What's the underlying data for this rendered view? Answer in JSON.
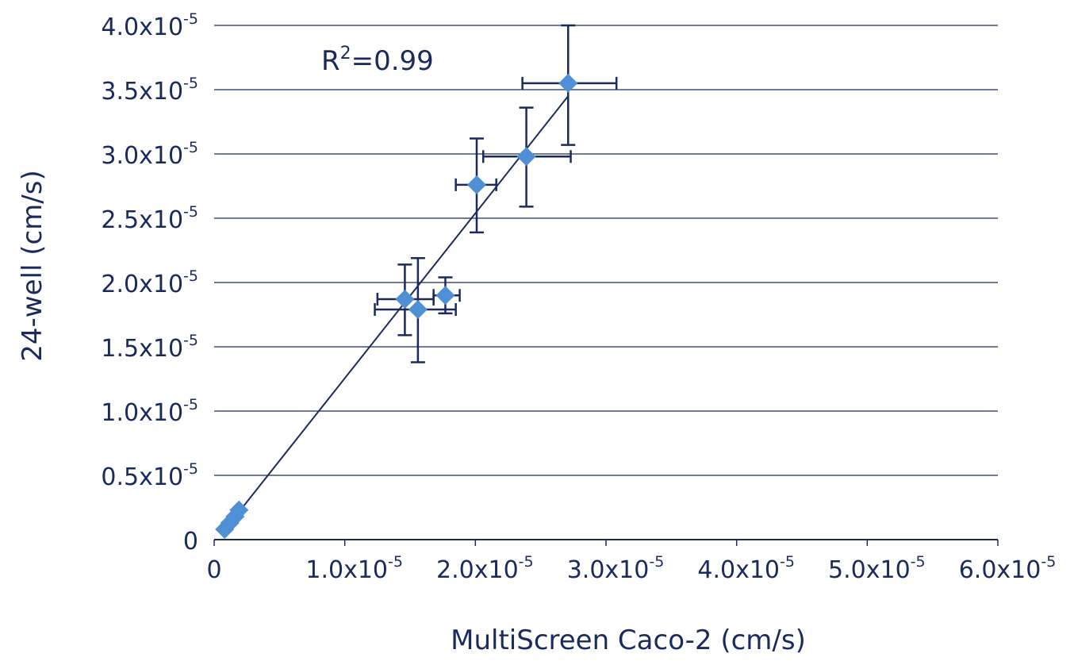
{
  "chart_data": {
    "type": "scatter",
    "title": "",
    "xlabel": "MultiScreen Caco-2 (cm/s)",
    "ylabel": "24-well (cm/s)",
    "xlim": [
      0,
      6.0
    ],
    "ylim": [
      0,
      4.0
    ],
    "units_multiplier": "x10^-5",
    "exponent": "-5",
    "x_ticks": [
      {
        "v": 0,
        "label": "0",
        "exp": false
      },
      {
        "v": 1.0,
        "label": "1.0x10",
        "exp": true
      },
      {
        "v": 2.0,
        "label": "2.0x10",
        "exp": true
      },
      {
        "v": 3.0,
        "label": "3.0x10",
        "exp": true
      },
      {
        "v": 4.0,
        "label": "4.0x10",
        "exp": true
      },
      {
        "v": 5.0,
        "label": "5.0x10",
        "exp": true
      },
      {
        "v": 6.0,
        "label": "6.0x10",
        "exp": true
      }
    ],
    "y_ticks": [
      {
        "v": 0,
        "label": "0",
        "exp": false
      },
      {
        "v": 0.5,
        "label": "0.5x10",
        "exp": true
      },
      {
        "v": 1.0,
        "label": "1.0x10",
        "exp": true
      },
      {
        "v": 1.5,
        "label": "1.5x10",
        "exp": true
      },
      {
        "v": 2.0,
        "label": "2.0x10",
        "exp": true
      },
      {
        "v": 2.5,
        "label": "2.5x10",
        "exp": true
      },
      {
        "v": 3.0,
        "label": "3.0x10",
        "exp": true
      },
      {
        "v": 3.5,
        "label": "3.5x10",
        "exp": true
      },
      {
        "v": 4.0,
        "label": "4.0x10",
        "exp": true
      }
    ],
    "grid": "horizontal",
    "annotation": {
      "text": "R",
      "sup": "2",
      "rest": "=0.99"
    },
    "points": [
      {
        "x": 0.08,
        "y": 0.08
      },
      {
        "x": 0.12,
        "y": 0.13
      },
      {
        "x": 0.16,
        "y": 0.18
      },
      {
        "x": 0.19,
        "y": 0.23
      },
      {
        "x": 1.46,
        "y": 1.87,
        "xerr": [
          1.25,
          1.68
        ],
        "yerr": [
          1.59,
          2.14
        ]
      },
      {
        "x": 1.56,
        "y": 1.79,
        "xerr": [
          1.23,
          1.85
        ],
        "yerr": [
          1.38,
          2.19
        ]
      },
      {
        "x": 1.77,
        "y": 1.9,
        "xerr": [
          1.68,
          1.88
        ],
        "yerr": [
          1.76,
          2.04
        ]
      },
      {
        "x": 2.01,
        "y": 2.76,
        "xerr": [
          1.85,
          2.16
        ],
        "yerr": [
          2.39,
          3.12
        ]
      },
      {
        "x": 2.39,
        "y": 2.98,
        "xerr": [
          2.06,
          2.73
        ],
        "yerr": [
          2.59,
          3.36
        ]
      },
      {
        "x": 2.71,
        "y": 3.55,
        "xerr": [
          2.36,
          3.08
        ],
        "yerr": [
          3.07,
          4.0
        ]
      }
    ],
    "trendline": {
      "x": [
        0.1,
        2.71
      ],
      "y": [
        0.1,
        3.45
      ]
    },
    "colors": {
      "marker": "#4f8fd6",
      "line": "#1b2a5e",
      "grid": "#1b2a5e"
    }
  }
}
